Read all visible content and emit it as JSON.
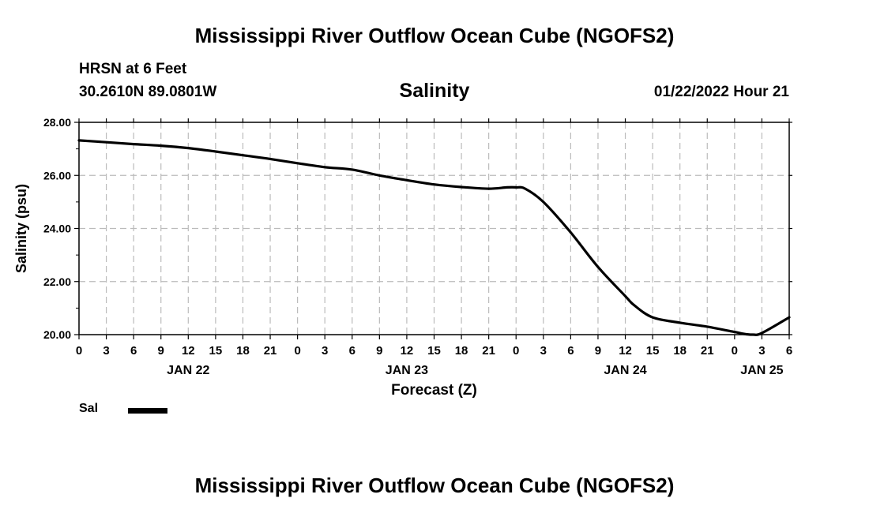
{
  "header": {
    "title": "Mississippi River Outflow Ocean Cube (NGOFS2)",
    "station": "HRSN at 6 Feet",
    "coords": "30.2610N  89.0801W",
    "variable": "Salinity",
    "datetime": "01/22/2022 Hour 21"
  },
  "footer": {
    "title": "Mississippi River Outflow Ocean Cube (NGOFS2)"
  },
  "legend": {
    "series_label": "Sal",
    "color": "#000000"
  },
  "chart_data": {
    "type": "line",
    "xlabel": "Forecast (Z)",
    "ylabel": "Salinity (psu)",
    "x_unit": "hours",
    "xlim": [
      0,
      78
    ],
    "ylim": [
      20.0,
      28.0
    ],
    "grid": true,
    "y_ticks": [
      "20.00",
      "22.00",
      "24.00",
      "26.00",
      "28.00"
    ],
    "y_tick_values": [
      20,
      22,
      24,
      26,
      28
    ],
    "x_ticks": [
      {
        "h": 0,
        "label": "0"
      },
      {
        "h": 3,
        "label": "3"
      },
      {
        "h": 6,
        "label": "6"
      },
      {
        "h": 9,
        "label": "9"
      },
      {
        "h": 12,
        "label": "12"
      },
      {
        "h": 15,
        "label": "15"
      },
      {
        "h": 18,
        "label": "18"
      },
      {
        "h": 21,
        "label": "21"
      },
      {
        "h": 24,
        "label": "0"
      },
      {
        "h": 27,
        "label": "3"
      },
      {
        "h": 30,
        "label": "6"
      },
      {
        "h": 33,
        "label": "9"
      },
      {
        "h": 36,
        "label": "12"
      },
      {
        "h": 39,
        "label": "15"
      },
      {
        "h": 42,
        "label": "18"
      },
      {
        "h": 45,
        "label": "21"
      },
      {
        "h": 48,
        "label": "0"
      },
      {
        "h": 51,
        "label": "3"
      },
      {
        "h": 54,
        "label": "6"
      },
      {
        "h": 57,
        "label": "9"
      },
      {
        "h": 60,
        "label": "12"
      },
      {
        "h": 63,
        "label": "15"
      },
      {
        "h": 66,
        "label": "18"
      },
      {
        "h": 69,
        "label": "21"
      },
      {
        "h": 72,
        "label": "0"
      },
      {
        "h": 75,
        "label": "3"
      },
      {
        "h": 78,
        "label": "6"
      }
    ],
    "date_labels": [
      {
        "h": 12,
        "label": "JAN 22"
      },
      {
        "h": 36,
        "label": "JAN 23"
      },
      {
        "h": 60,
        "label": "JAN 24"
      },
      {
        "h": 75,
        "label": "JAN 25"
      }
    ],
    "series": [
      {
        "name": "Sal",
        "x": [
          0,
          3,
          6,
          9,
          12,
          15,
          18,
          21,
          24,
          27,
          30,
          33,
          36,
          39,
          42,
          45,
          47,
          48,
          49,
          51,
          54,
          57,
          60,
          61,
          63,
          66,
          69,
          72,
          73,
          74,
          75,
          78
        ],
        "y": [
          27.32,
          27.25,
          27.18,
          27.12,
          27.03,
          26.9,
          26.76,
          26.62,
          26.46,
          26.31,
          26.22,
          26.0,
          25.82,
          25.66,
          25.56,
          25.5,
          25.55,
          25.55,
          25.5,
          25.0,
          23.85,
          22.55,
          21.45,
          21.1,
          20.65,
          20.45,
          20.3,
          20.1,
          20.03,
          20.0,
          20.06,
          20.65
        ]
      }
    ]
  }
}
